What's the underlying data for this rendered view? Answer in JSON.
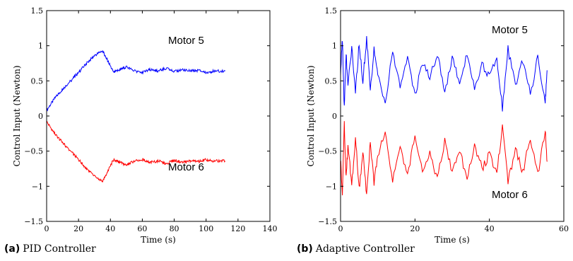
{
  "captions": [
    {
      "label": "(a)",
      "text": "PID Controller"
    },
    {
      "label": "(b)",
      "text": "Adaptive Controller"
    }
  ],
  "colors": {
    "motor5": "#0000ff",
    "motor6": "#ff0000"
  },
  "chart_data": [
    {
      "type": "line",
      "title": "",
      "xlabel": "Time (s)",
      "ylabel": "Control Input (Newton)",
      "xlim": [
        0,
        140
      ],
      "ylim": [
        -1.5,
        1.5
      ],
      "xticks": [
        "0",
        "20",
        "40",
        "60",
        "80",
        "100",
        "120",
        "140"
      ],
      "yticks": [
        "1.5",
        "1",
        "0.5",
        "0",
        "−0.5",
        "−1",
        "−1.5"
      ],
      "annotations": [
        "Motor 5",
        "Motor 6"
      ],
      "series": [
        {
          "color": "#0000ff",
          "x": [
            0,
            5,
            10,
            15,
            20,
            25,
            30,
            35,
            38,
            42,
            46,
            50,
            55,
            60,
            65,
            70,
            75,
            80,
            85,
            90,
            95,
            100,
            105,
            112
          ],
          "y": [
            0.08,
            0.25,
            0.38,
            0.5,
            0.62,
            0.75,
            0.86,
            0.93,
            0.8,
            0.62,
            0.66,
            0.7,
            0.64,
            0.62,
            0.66,
            0.64,
            0.68,
            0.63,
            0.66,
            0.64,
            0.65,
            0.62,
            0.64,
            0.64
          ]
        },
        {
          "color": "#ff0000",
          "x": [
            0,
            5,
            10,
            15,
            20,
            25,
            30,
            35,
            38,
            42,
            46,
            50,
            55,
            60,
            65,
            70,
            75,
            80,
            85,
            90,
            95,
            100,
            105,
            112
          ],
          "y": [
            -0.08,
            -0.25,
            -0.38,
            -0.5,
            -0.62,
            -0.75,
            -0.86,
            -0.93,
            -0.8,
            -0.62,
            -0.66,
            -0.7,
            -0.64,
            -0.62,
            -0.66,
            -0.64,
            -0.68,
            -0.63,
            -0.66,
            -0.64,
            -0.65,
            -0.62,
            -0.64,
            -0.64
          ]
        }
      ]
    },
    {
      "type": "line",
      "title": "",
      "xlabel": "Time (s)",
      "ylabel": "Control Input (Newton)",
      "xlim": [
        0,
        60
      ],
      "ylim": [
        -1.5,
        1.5
      ],
      "xticks": [
        "0",
        "20",
        "40",
        "60"
      ],
      "yticks": [
        "1.5",
        "1",
        "0.5",
        "0",
        "−0.5",
        "−1",
        "−1.5"
      ],
      "annotations": [
        "Motor 5",
        "Motor 6"
      ],
      "series": [
        {
          "color": "#0000ff",
          "x": [
            0,
            0.5,
            1,
            1.5,
            2,
            3,
            4,
            5,
            6,
            7,
            8,
            9,
            10,
            12,
            14,
            16,
            18,
            20,
            22,
            24,
            26,
            28,
            30,
            32,
            34,
            36,
            38,
            40,
            42,
            43.5,
            45,
            47,
            49,
            51,
            53,
            55,
            55.5
          ],
          "y": [
            0.6,
            1.1,
            0.1,
            0.9,
            0.4,
            1.0,
            0.3,
            1.05,
            0.5,
            1.12,
            0.35,
            0.95,
            0.6,
            0.2,
            0.9,
            0.45,
            0.85,
            0.3,
            0.75,
            0.55,
            0.9,
            0.35,
            0.8,
            0.5,
            0.9,
            0.4,
            0.75,
            0.55,
            0.85,
            0.1,
            0.95,
            0.45,
            0.8,
            0.3,
            0.85,
            0.2,
            0.65
          ]
        },
        {
          "color": "#ff0000",
          "x": [
            0,
            0.5,
            1,
            1.5,
            2,
            3,
            4,
            5,
            6,
            7,
            8,
            9,
            10,
            12,
            14,
            16,
            18,
            20,
            22,
            24,
            26,
            28,
            30,
            32,
            34,
            36,
            38,
            40,
            42,
            43.5,
            45,
            47,
            49,
            51,
            53,
            55,
            55.5
          ],
          "y": [
            -0.6,
            -1.1,
            -0.1,
            -0.9,
            -0.4,
            -1.0,
            -0.3,
            -1.05,
            -0.5,
            -1.12,
            -0.35,
            -0.95,
            -0.6,
            -0.2,
            -0.9,
            -0.45,
            -0.85,
            -0.3,
            -0.75,
            -0.55,
            -0.9,
            -0.35,
            -0.8,
            -0.5,
            -0.9,
            -0.4,
            -0.75,
            -0.55,
            -0.85,
            -0.1,
            -0.95,
            -0.45,
            -0.8,
            -0.3,
            -0.85,
            -0.2,
            -0.65
          ]
        }
      ]
    }
  ]
}
